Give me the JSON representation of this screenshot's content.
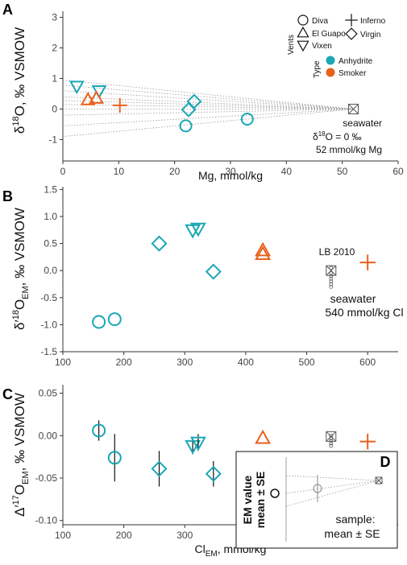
{
  "colors": {
    "anhydrite": "#1aa7b5",
    "smoker": "#e8601c",
    "seawater": "#555555",
    "axis": "#333333"
  },
  "legend": {
    "vents_title": "Vents",
    "vents": [
      {
        "name": "Diva",
        "shape": "circle"
      },
      {
        "name": "El Guapo",
        "shape": "triangle-up"
      },
      {
        "name": "Vixen",
        "shape": "triangle-down"
      },
      {
        "name": "Inferno",
        "shape": "plus"
      },
      {
        "name": "Virgin",
        "shape": "diamond"
      }
    ],
    "type_title": "Type",
    "types": [
      {
        "name": "Anhydrite",
        "color": "#1aa7b5"
      },
      {
        "name": "Smoker",
        "color": "#e8601c"
      }
    ]
  },
  "chart_data": [
    {
      "panel": "A",
      "type": "scatter",
      "xlabel": "Mg, mmol/kg",
      "ylabel_parts": [
        "δ",
        "18",
        "O, ‰ VSMOW"
      ],
      "xlim": [
        0,
        60
      ],
      "ylim": [
        -1.7,
        3.2
      ],
      "xticks": [
        0,
        10,
        20,
        30,
        40,
        50,
        60
      ],
      "yticks": [
        -1,
        0,
        1,
        2,
        3
      ],
      "points": [
        {
          "vent": "Vixen",
          "type": "Anhydrite",
          "x": 2.5,
          "y": 0.75
        },
        {
          "vent": "Vixen",
          "type": "Anhydrite",
          "x": 6.5,
          "y": 0.6
        },
        {
          "vent": "El Guapo",
          "type": "Smoker",
          "x": 4.5,
          "y": 0.3
        },
        {
          "vent": "El Guapo",
          "type": "Smoker",
          "x": 6.0,
          "y": 0.35
        },
        {
          "vent": "Inferno",
          "type": "Smoker",
          "x": 10.2,
          "y": 0.12
        },
        {
          "vent": "Virgin",
          "type": "Anhydrite",
          "x": 23.5,
          "y": 0.25
        },
        {
          "vent": "Virgin",
          "type": "Anhydrite",
          "x": 22.5,
          "y": -0.02
        },
        {
          "vent": "Diva",
          "type": "Anhydrite",
          "x": 22.0,
          "y": -0.55
        },
        {
          "vent": "Diva",
          "type": "Anhydrite",
          "x": 33.0,
          "y": -0.33
        }
      ],
      "seawater": {
        "x": 52,
        "y": 0
      },
      "mixing_lines_y0": [
        0.95,
        0.78,
        0.6,
        0.4,
        0.28,
        0.15,
        0.0,
        -0.2,
        -0.55,
        -0.9
      ],
      "annotation_lines": [
        "seawater",
        "δ18O = 0 ‰",
        "52 mmol/kg Mg"
      ]
    },
    {
      "panel": "B",
      "type": "scatter",
      "xlabel": "",
      "ylabel_parts": [
        "δ′",
        "18",
        "O",
        "EM",
        ", ‰ VSMOW"
      ],
      "xlim": [
        100,
        650
      ],
      "ylim": [
        -1.5,
        1.55
      ],
      "xticks": [
        100,
        200,
        300,
        400,
        500,
        600
      ],
      "yticks": [
        -1.5,
        -1.0,
        -0.5,
        0.0,
        0.5,
        1.0,
        1.5
      ],
      "ytick_labels": [
        "-1.5",
        "-1.0",
        "-0.5",
        "0.0",
        "0.5",
        "1.0",
        "1.5"
      ],
      "points": [
        {
          "vent": "Diva",
          "type": "Anhydrite",
          "x": 159,
          "y": -0.95
        },
        {
          "vent": "Diva",
          "type": "Anhydrite",
          "x": 185,
          "y": -0.9
        },
        {
          "vent": "Virgin",
          "type": "Anhydrite",
          "x": 258,
          "y": 0.5
        },
        {
          "vent": "Virgin",
          "type": "Anhydrite",
          "x": 347,
          "y": -0.02
        },
        {
          "vent": "Vixen",
          "type": "Anhydrite",
          "x": 313,
          "y": 0.75
        },
        {
          "vent": "Vixen",
          "type": "Anhydrite",
          "x": 322,
          "y": 0.78
        },
        {
          "vent": "El Guapo",
          "type": "Smoker",
          "x": 428,
          "y": 0.37
        },
        {
          "vent": "El Guapo",
          "type": "Smoker",
          "x": 428,
          "y": 0.3
        },
        {
          "vent": "Inferno",
          "type": "Smoker",
          "x": 600,
          "y": 0.15
        }
      ],
      "seawater": {
        "x": 540,
        "y": 0.0
      },
      "lb2010": [
        0.05,
        -0.05,
        -0.1,
        -0.15,
        -0.2,
        -0.25,
        -0.3
      ],
      "annotation_lb": "LB 2010",
      "annotation_lines": [
        "seawater",
        "540 mmol/kg Cl"
      ]
    },
    {
      "panel": "C",
      "type": "scatter",
      "xlabel_parts": [
        "Cl",
        "EM",
        ", mmol/kg"
      ],
      "ylabel_parts": [
        "Δ′",
        "17",
        "O",
        "EM",
        ", ‰ VSMOW"
      ],
      "xlim": [
        100,
        650
      ],
      "ylim": [
        -0.105,
        0.06
      ],
      "xticks": [
        100,
        200,
        300,
        400,
        500,
        600
      ],
      "yticks": [
        -0.1,
        -0.05,
        0.0,
        0.05
      ],
      "ytick_labels": [
        "-0.10",
        "-0.05",
        "0.00",
        "0.05"
      ],
      "points": [
        {
          "vent": "Diva",
          "type": "Anhydrite",
          "x": 159,
          "y": 0.006,
          "se": 0.012
        },
        {
          "vent": "Diva",
          "type": "Anhydrite",
          "x": 185,
          "y": -0.026,
          "se": 0.028
        },
        {
          "vent": "Virgin",
          "type": "Anhydrite",
          "x": 258,
          "y": -0.039,
          "se": 0.021
        },
        {
          "vent": "Virgin",
          "type": "Anhydrite",
          "x": 347,
          "y": -0.045,
          "se": 0.015
        },
        {
          "vent": "Vixen",
          "type": "Anhydrite",
          "x": 313,
          "y": -0.012,
          "se": 0.01
        },
        {
          "vent": "Vixen",
          "type": "Anhydrite",
          "x": 322,
          "y": -0.008,
          "se": 0.01
        },
        {
          "vent": "El Guapo",
          "type": "Smoker",
          "x": 428,
          "y": -0.003,
          "se": 0.0
        },
        {
          "vent": "Inferno",
          "type": "Smoker",
          "x": 600,
          "y": -0.007,
          "se": 0.0
        }
      ],
      "seawater": {
        "x": 540,
        "y": -0.001
      },
      "lb2010": [
        0.0,
        -0.003,
        -0.006,
        -0.009,
        -0.012
      ],
      "inset": {
        "label": "D",
        "ylabel": [
          "EM value",
          "mean ± SE"
        ],
        "text": [
          "sample:",
          "mean ± SE"
        ]
      }
    }
  ]
}
